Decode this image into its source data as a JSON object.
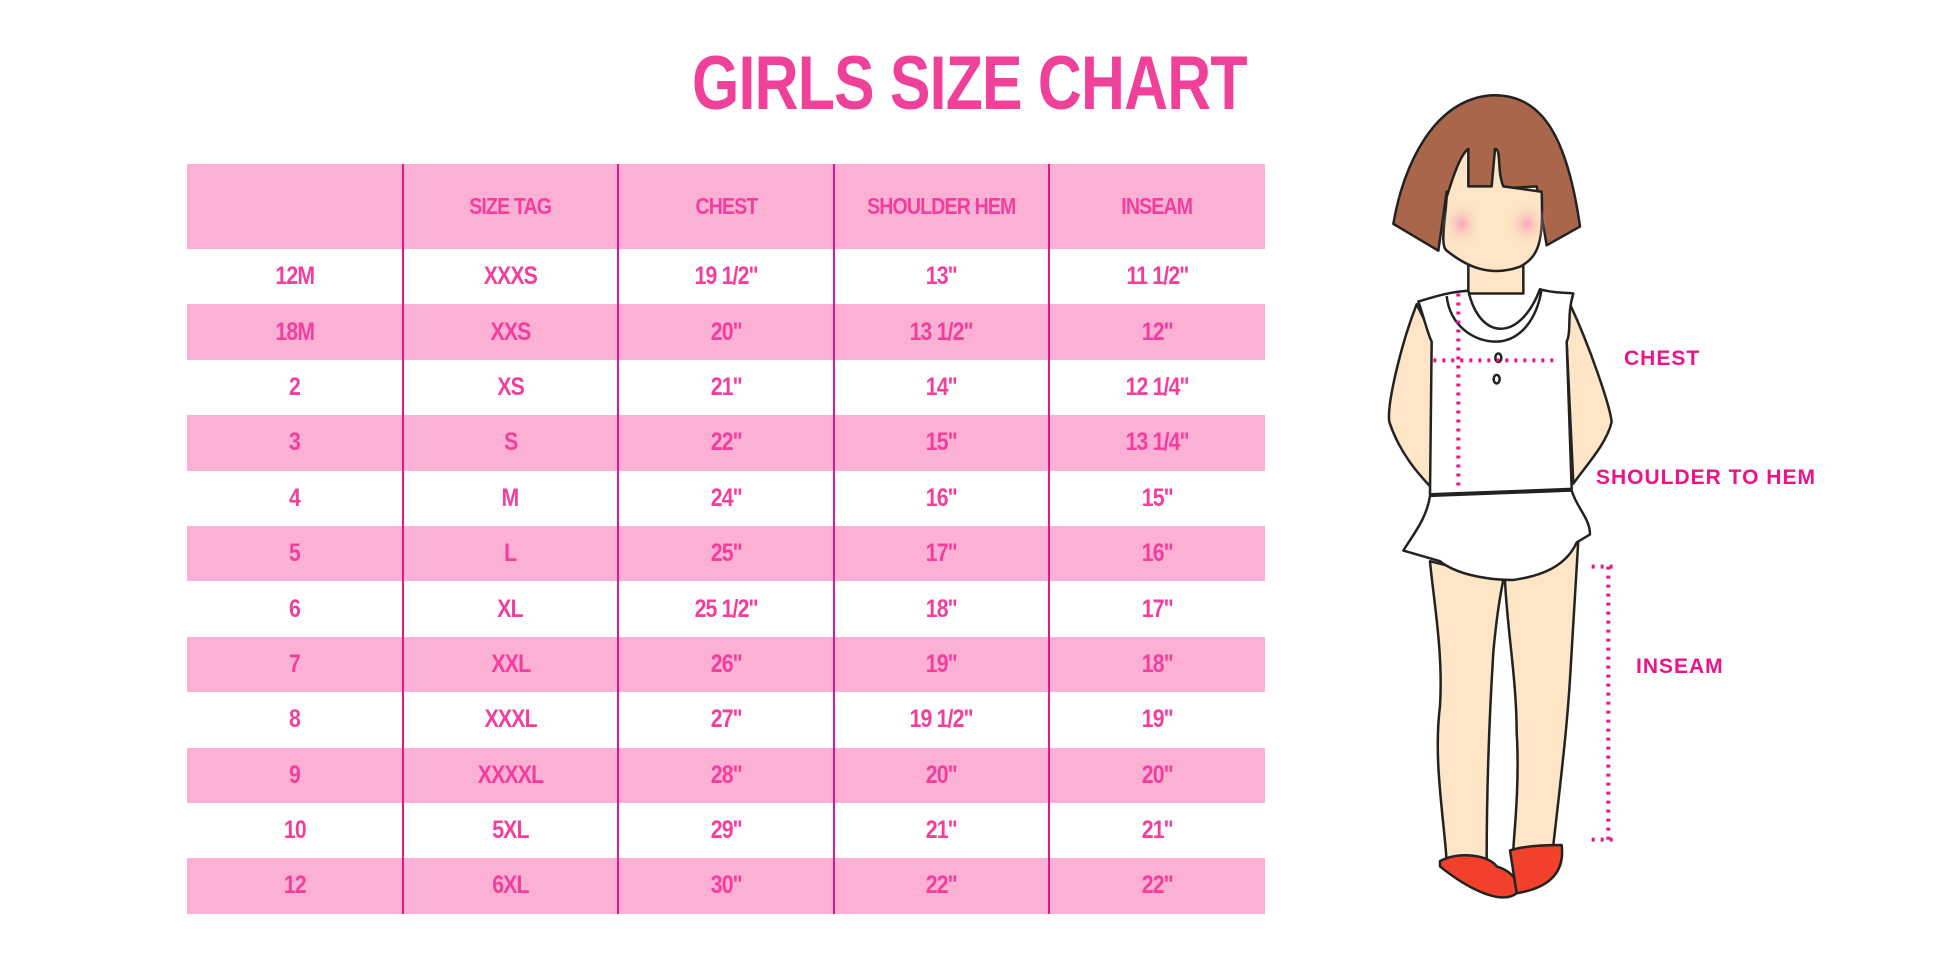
{
  "title": "GIRLS SIZE CHART",
  "colors": {
    "accent": "#f0419a",
    "band": "#fdb0d5",
    "divider": "#e3168d"
  },
  "table": {
    "headers": [
      "",
      "SIZE TAG",
      "CHEST",
      "SHOULDER HEM",
      "INSEAM"
    ],
    "rows": [
      [
        "12M",
        "XXXS",
        "19 1/2\"",
        "13\"",
        "11 1/2\""
      ],
      [
        "18M",
        "XXS",
        "20\"",
        "13 1/2\"",
        "12\""
      ],
      [
        "2",
        "XS",
        "21\"",
        "14\"",
        "12 1/4\""
      ],
      [
        "3",
        "S",
        "22\"",
        "15\"",
        "13 1/4\""
      ],
      [
        "4",
        "M",
        "24\"",
        "16\"",
        "15\""
      ],
      [
        "5",
        "L",
        "25\"",
        "17\"",
        "16\""
      ],
      [
        "6",
        "XL",
        "25 1/2\"",
        "18\"",
        "17\""
      ],
      [
        "7",
        "XXL",
        "26\"",
        "19\"",
        "18\""
      ],
      [
        "8",
        "XXXL",
        "27\"",
        "19 1/2\"",
        "19\""
      ],
      [
        "9",
        "XXXXL",
        "28\"",
        "20\"",
        "20\""
      ],
      [
        "10",
        "5XL",
        "29\"",
        "21\"",
        "21\""
      ],
      [
        "12",
        "6XL",
        "30\"",
        "22\"",
        "22\""
      ]
    ]
  },
  "figure": {
    "labels": {
      "chest": "CHEST",
      "shoulder_to_hem": "SHOULDER TO HEM",
      "inseam": "INSEAM"
    }
  }
}
